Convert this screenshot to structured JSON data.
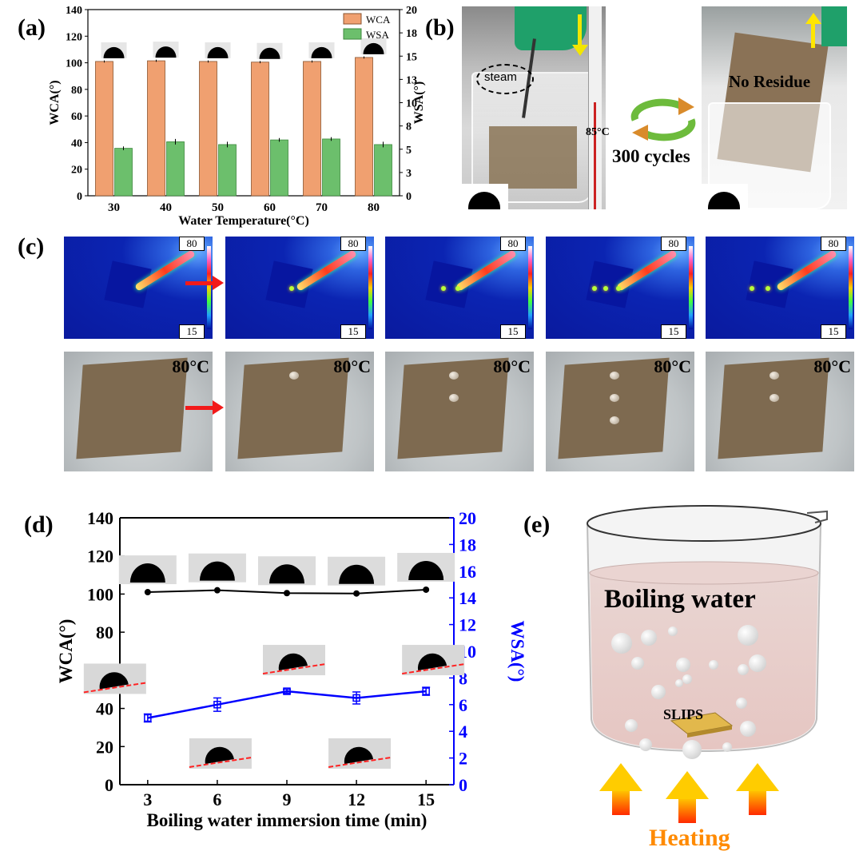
{
  "panels": {
    "a": "(a)",
    "b": "(b)",
    "c": "(c)",
    "d": "(d)",
    "e": "(e)"
  },
  "panel_b": {
    "steam": "steam",
    "temp": "85°C",
    "cycles": "300 cycles",
    "no_residue": "No Residue",
    "colors": {
      "down_arrow": "#f2e600",
      "up_arrow": "#ffe600",
      "cycle_arrow_green": "#6dbb3c",
      "cycle_arrow_orange": "#d98b2b"
    }
  },
  "panel_c": {
    "scale_max": "80",
    "scale_min": "15",
    "photo_temp": "80°C",
    "thermal_frames": 5,
    "drops_per_frame": [
      0,
      1,
      2,
      3,
      2
    ]
  },
  "panel_e": {
    "boiling_water": "Boiling water",
    "slips": "SLIPS",
    "heating": "Heating",
    "colors": {
      "heating_text": "#ff8a00",
      "arrow_top": "#ffcc00",
      "arrow_bottom": "#ff2a00"
    }
  },
  "chart_data": [
    {
      "type": "bar",
      "categories": [
        "30",
        "40",
        "50",
        "60",
        "70",
        "80"
      ],
      "series": [
        {
          "name": "WCA",
          "axis": "left",
          "values": [
            101,
            101.5,
            101,
            100.5,
            101,
            104
          ],
          "errors": [
            0.8,
            0.8,
            0.8,
            0.8,
            0.8,
            0.8
          ],
          "color": "#f0a070"
        },
        {
          "name": "WSA",
          "axis": "right",
          "values": [
            5.1,
            5.8,
            5.5,
            6.0,
            6.1,
            5.5
          ],
          "errors": [
            0.2,
            0.3,
            0.3,
            0.2,
            0.2,
            0.3
          ],
          "color": "#6cbf6c"
        }
      ],
      "xlabel": "Water Temperature(°C)",
      "ylabel": "WCA(°)",
      "y2label": "WSA(°)",
      "ylim": [
        0,
        140
      ],
      "y2lim": [
        0,
        20
      ],
      "yticks": [
        "0",
        "20",
        "40",
        "60",
        "80",
        "100",
        "120",
        "140"
      ],
      "y2ticks": [
        "0",
        "3",
        "5",
        "8",
        "10",
        "13",
        "15",
        "18",
        "20"
      ],
      "legend": "top-right"
    },
    {
      "type": "line",
      "x": [
        3,
        6,
        9,
        12,
        15
      ],
      "xticks": [
        "3",
        "6",
        "9",
        "12",
        "15"
      ],
      "series": [
        {
          "axis": "left",
          "values": [
            101,
            102,
            100.5,
            100.3,
            102.3
          ],
          "color": "#000000"
        },
        {
          "axis": "right",
          "values": [
            5.0,
            6.0,
            7.0,
            6.5,
            7.0
          ],
          "errors": [
            0.3,
            0.5,
            0.15,
            0.45,
            0.3
          ],
          "color": "#0000ff"
        }
      ],
      "xlabel": "Boiling water immersion time (min)",
      "ylabel": "WCA(°)",
      "y2label": "WSA(°)",
      "ylim": [
        0,
        140
      ],
      "y2lim": [
        0,
        20
      ],
      "yticks": [
        "0",
        "20",
        "40",
        "60",
        "80",
        "100",
        "120",
        "140"
      ],
      "y2ticks": [
        "0",
        "2",
        "4",
        "6",
        "8",
        "10",
        "12",
        "14",
        "16",
        "18",
        "20"
      ]
    }
  ]
}
